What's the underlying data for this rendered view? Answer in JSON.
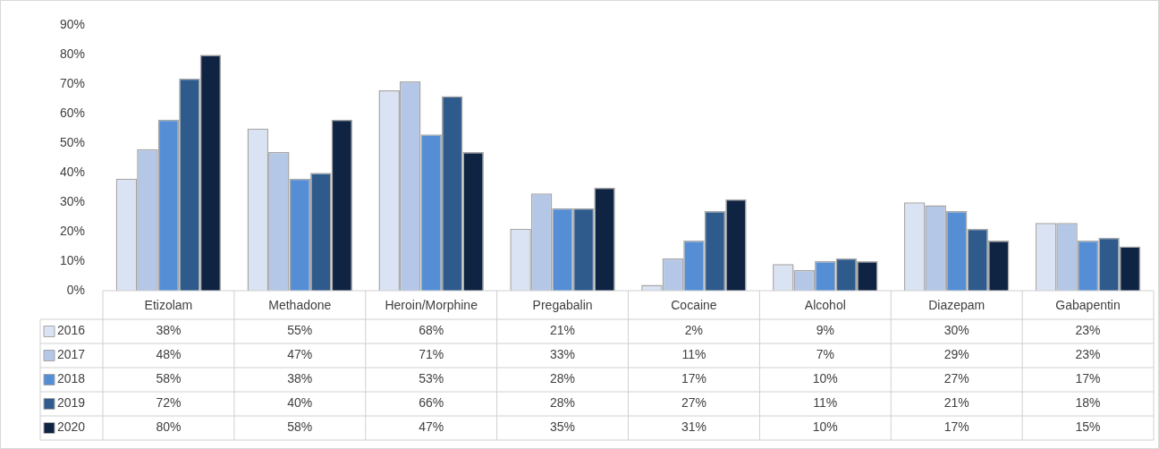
{
  "chart_data": {
    "type": "bar",
    "categories": [
      "Etizolam",
      "Methadone",
      "Heroin/Morphine",
      "Pregabalin",
      "Cocaine",
      "Alcohol",
      "Diazepam",
      "Gabapentin"
    ],
    "series": [
      {
        "name": "2016",
        "color": "#dae3f3",
        "values": [
          38,
          55,
          68,
          21,
          2,
          9,
          30,
          23
        ],
        "value_labels": [
          "38%",
          "55%",
          "68%",
          "21%",
          "2%",
          "9%",
          "30%",
          "23%"
        ]
      },
      {
        "name": "2017",
        "color": "#b4c7e7",
        "values": [
          48,
          47,
          71,
          33,
          11,
          7,
          29,
          23
        ],
        "value_labels": [
          "48%",
          "47%",
          "71%",
          "33%",
          "11%",
          "7%",
          "29%",
          "23%"
        ]
      },
      {
        "name": "2018",
        "color": "#558ed5",
        "values": [
          58,
          38,
          53,
          28,
          17,
          10,
          27,
          17
        ],
        "value_labels": [
          "58%",
          "38%",
          "53%",
          "28%",
          "17%",
          "10%",
          "27%",
          "17%"
        ]
      },
      {
        "name": "2019",
        "color": "#2e5a8c",
        "values": [
          72,
          40,
          66,
          28,
          27,
          11,
          21,
          18
        ],
        "value_labels": [
          "72%",
          "40%",
          "66%",
          "28%",
          "27%",
          "11%",
          "21%",
          "18%"
        ]
      },
      {
        "name": "2020",
        "color": "#0f2342",
        "values": [
          80,
          58,
          47,
          35,
          31,
          10,
          17,
          15
        ],
        "value_labels": [
          "80%",
          "58%",
          "47%",
          "35%",
          "31%",
          "10%",
          "17%",
          "15%"
        ]
      }
    ],
    "ylim": [
      0,
      90
    ],
    "yticks": [
      {
        "value": 0,
        "label": "0%"
      },
      {
        "value": 10,
        "label": "10%"
      },
      {
        "value": 20,
        "label": "20%"
      },
      {
        "value": 30,
        "label": "30%"
      },
      {
        "value": 40,
        "label": "40%"
      },
      {
        "value": 50,
        "label": "50%"
      },
      {
        "value": 60,
        "label": "60%"
      },
      {
        "value": 70,
        "label": "70%"
      },
      {
        "value": 80,
        "label": "80%"
      },
      {
        "value": 90,
        "label": "90%"
      }
    ],
    "grid": false,
    "legend": "bottom left"
  }
}
